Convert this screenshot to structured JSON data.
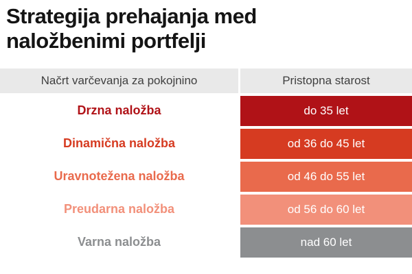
{
  "title": "Strategija prehajanja med naložbenimi portfelji",
  "table": {
    "headers": [
      "Načrt varčevanja za pokojnino",
      "Pristopna starost"
    ],
    "rows": [
      {
        "plan": "Drzna naložba",
        "age": "do 35 let",
        "color": "#b01217"
      },
      {
        "plan": "Dinamična naložba",
        "age": "od 36 do 45 let",
        "color": "#d63b21"
      },
      {
        "plan": "Uravnotežena naložba",
        "age": "od 46 do 55 let",
        "color": "#e96a4c"
      },
      {
        "plan": "Preudarna naložba",
        "age": "od 56 do 60 let",
        "color": "#f2907a"
      },
      {
        "plan": "Varna naložba",
        "age": "nad 60 let",
        "color": "#8c8e90"
      }
    ]
  },
  "colors": {
    "header_background": "#e9e9e9",
    "header_text": "#3f3f3f",
    "title_text": "#141414",
    "age_text": "#ffffff"
  },
  "chart_data": {
    "type": "table",
    "title": "Strategija prehajanja med naložbenimi portfelji",
    "columns": [
      "Načrt varčevanja za pokojnino",
      "Pristopna starost"
    ],
    "rows": [
      [
        "Drzna naložba",
        "do 35 let"
      ],
      [
        "Dinamična naložba",
        "od 36 do 45 let"
      ],
      [
        "Uravnotežena naložba",
        "od 46 do 55 let"
      ],
      [
        "Preudarna naložba",
        "od 56 do 60 let"
      ],
      [
        "Varna naložba",
        "nad 60 let"
      ]
    ],
    "row_colors": [
      "#b01217",
      "#d63b21",
      "#e96a4c",
      "#f2907a",
      "#8c8e90"
    ],
    "legend_position": "none",
    "grid": false
  }
}
